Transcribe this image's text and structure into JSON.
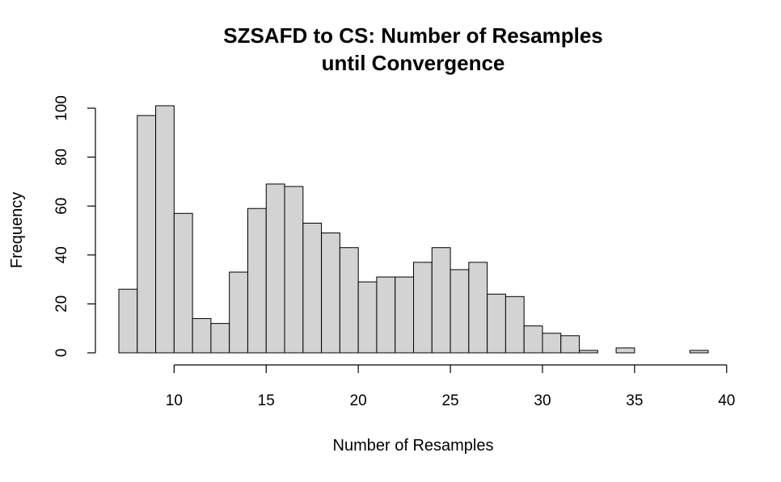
{
  "chart_data": {
    "type": "bar",
    "title_lines": [
      "SZSAFD to CS: Number of Resamples",
      "until Convergence"
    ],
    "xlabel": "Number of Resamples",
    "ylabel": "Frequency",
    "bar_color": "#d3d3d3",
    "edge_color": "#000000",
    "grid": false,
    "legend": "none",
    "xlim": [
      7,
      40
    ],
    "ylim": [
      0,
      100
    ],
    "x_ticks": [
      10,
      15,
      20,
      25,
      30,
      35,
      40
    ],
    "y_ticks": [
      0,
      20,
      40,
      60,
      80,
      100
    ],
    "bin_width": 1,
    "bins": [
      {
        "start": 7,
        "end": 8,
        "count": 26
      },
      {
        "start": 8,
        "end": 9,
        "count": 97
      },
      {
        "start": 9,
        "end": 10,
        "count": 101
      },
      {
        "start": 10,
        "end": 11,
        "count": 57
      },
      {
        "start": 11,
        "end": 12,
        "count": 14
      },
      {
        "start": 12,
        "end": 13,
        "count": 12
      },
      {
        "start": 13,
        "end": 14,
        "count": 33
      },
      {
        "start": 14,
        "end": 15,
        "count": 59
      },
      {
        "start": 15,
        "end": 16,
        "count": 69
      },
      {
        "start": 16,
        "end": 17,
        "count": 68
      },
      {
        "start": 17,
        "end": 18,
        "count": 53
      },
      {
        "start": 18,
        "end": 19,
        "count": 49
      },
      {
        "start": 19,
        "end": 20,
        "count": 43
      },
      {
        "start": 20,
        "end": 21,
        "count": 29
      },
      {
        "start": 21,
        "end": 22,
        "count": 31
      },
      {
        "start": 22,
        "end": 23,
        "count": 31
      },
      {
        "start": 23,
        "end": 24,
        "count": 37
      },
      {
        "start": 24,
        "end": 25,
        "count": 43
      },
      {
        "start": 25,
        "end": 26,
        "count": 34
      },
      {
        "start": 26,
        "end": 27,
        "count": 37
      },
      {
        "start": 27,
        "end": 28,
        "count": 24
      },
      {
        "start": 28,
        "end": 29,
        "count": 23
      },
      {
        "start": 29,
        "end": 30,
        "count": 11
      },
      {
        "start": 30,
        "end": 31,
        "count": 8
      },
      {
        "start": 31,
        "end": 32,
        "count": 7
      },
      {
        "start": 32,
        "end": 33,
        "count": 1
      },
      {
        "start": 33,
        "end": 34,
        "count": 0
      },
      {
        "start": 34,
        "end": 35,
        "count": 2
      },
      {
        "start": 35,
        "end": 36,
        "count": 0
      },
      {
        "start": 36,
        "end": 37,
        "count": 0
      },
      {
        "start": 37,
        "end": 38,
        "count": 0
      },
      {
        "start": 38,
        "end": 39,
        "count": 1
      }
    ]
  }
}
